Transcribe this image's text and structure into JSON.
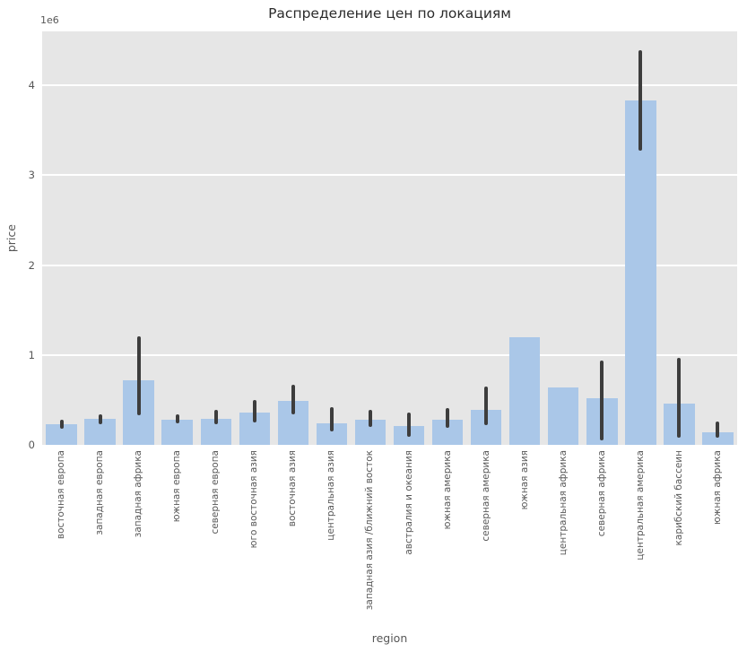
{
  "chart_data": {
    "type": "bar",
    "title": "Распределение цен по локациям",
    "xlabel": "region",
    "ylabel": "price",
    "y_offset_label": "1e6",
    "ylim": [
      0,
      4600000
    ],
    "grid": true,
    "legend_position": "none",
    "plot_bg_color": "#e6e6e6",
    "grid_color": "#ffffff",
    "bar_color": "#aac7e8",
    "errorbar_color": "#3d3d3d",
    "yticks": [
      {
        "value": 0,
        "label": "0"
      },
      {
        "value": 1000000,
        "label": "1"
      },
      {
        "value": 2000000,
        "label": "2"
      },
      {
        "value": 3000000,
        "label": "3"
      },
      {
        "value": 4000000,
        "label": "4"
      }
    ],
    "categories": [
      "восточная европа",
      "западная европа",
      "западная африка",
      "южная европа",
      "северная европа",
      "юго восточная азия",
      "восточная азия",
      "центральная азия",
      "западная азия /ближний восток",
      "австралия и океания",
      "южная америка",
      "северная америка",
      "южная азия",
      "центральная африка",
      "северная африка",
      "центральная америка",
      "карибский бассеин",
      "южная африка"
    ],
    "values": [
      230000,
      290000,
      720000,
      280000,
      290000,
      360000,
      490000,
      240000,
      280000,
      210000,
      280000,
      390000,
      1200000,
      640000,
      520000,
      3830000,
      460000,
      140000
    ],
    "error_low": [
      180000,
      230000,
      330000,
      240000,
      230000,
      250000,
      340000,
      150000,
      200000,
      90000,
      190000,
      220000,
      null,
      null,
      50000,
      3270000,
      80000,
      80000
    ],
    "error_high": [
      280000,
      340000,
      1210000,
      340000,
      390000,
      500000,
      670000,
      420000,
      390000,
      360000,
      410000,
      650000,
      null,
      null,
      940000,
      4390000,
      970000,
      260000
    ]
  }
}
